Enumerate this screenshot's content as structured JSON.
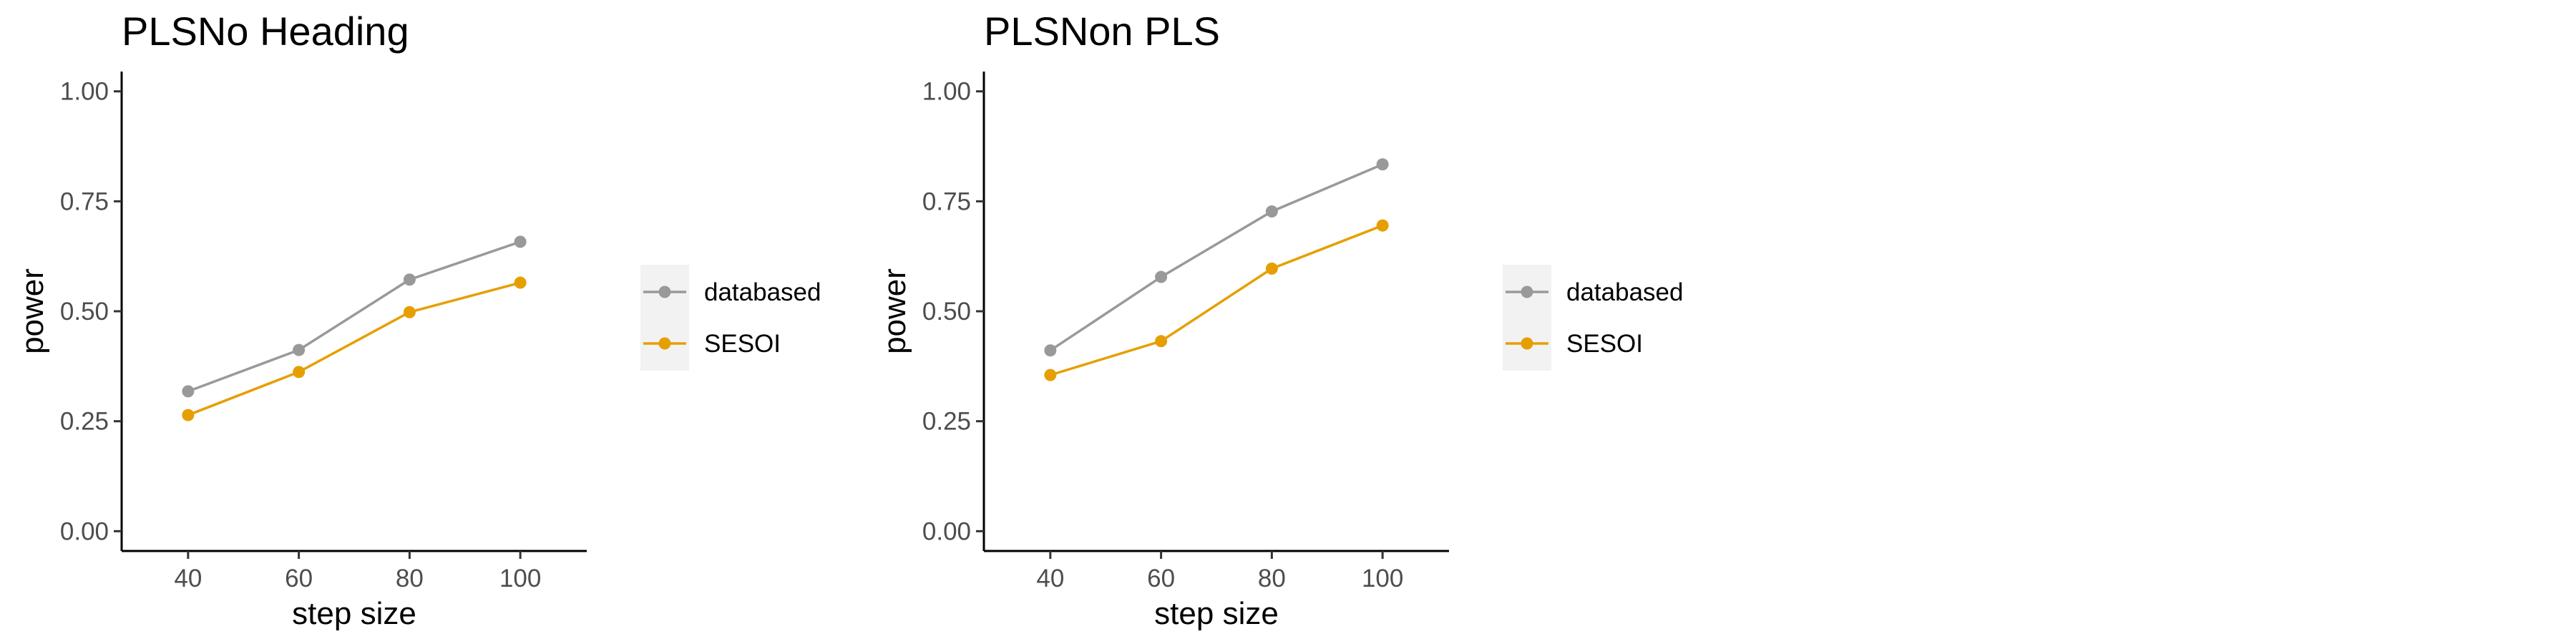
{
  "chart_data": [
    {
      "type": "line",
      "title": "PLSNo Heading",
      "xlabel": "step size",
      "ylabel": "power",
      "x": [
        40,
        60,
        80,
        100
      ],
      "xlim": [
        28,
        112
      ],
      "ylim": [
        -0.045,
        1.045
      ],
      "xticks": [
        "40",
        "60",
        "80",
        "100"
      ],
      "yticks": [
        "0.00",
        "0.25",
        "0.50",
        "0.75",
        "1.00"
      ],
      "series": [
        {
          "name": "databased",
          "color": "#999999",
          "values": [
            0.318,
            0.412,
            0.572,
            0.658
          ]
        },
        {
          "name": "SESOI",
          "color": "#E69F00",
          "values": [
            0.264,
            0.362,
            0.498,
            0.565
          ]
        }
      ],
      "grid": false,
      "legend": "right"
    },
    {
      "type": "line",
      "title": "PLSNon PLS",
      "xlabel": "step size",
      "ylabel": "power",
      "x": [
        40,
        60,
        80,
        100
      ],
      "xlim": [
        28,
        112
      ],
      "ylim": [
        -0.045,
        1.045
      ],
      "xticks": [
        "40",
        "60",
        "80",
        "100"
      ],
      "yticks": [
        "0.00",
        "0.25",
        "0.50",
        "0.75",
        "1.00"
      ],
      "series": [
        {
          "name": "databased",
          "color": "#999999",
          "values": [
            0.411,
            0.578,
            0.727,
            0.834
          ]
        },
        {
          "name": "SESOI",
          "color": "#E69F00",
          "values": [
            0.355,
            0.432,
            0.597,
            0.695
          ]
        }
      ],
      "grid": false,
      "legend": "right"
    }
  ]
}
